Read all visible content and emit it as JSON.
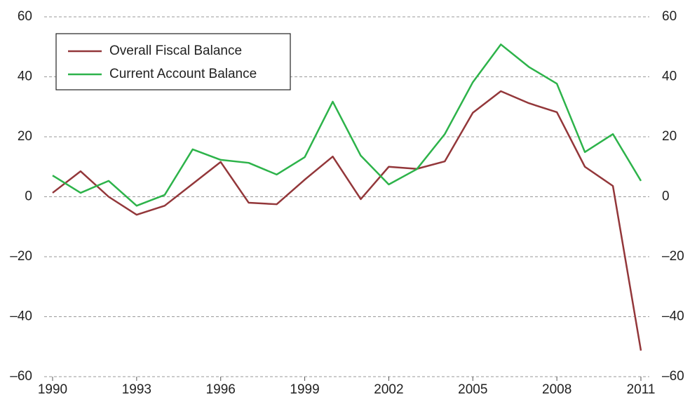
{
  "chart_data": {
    "type": "line",
    "x": [
      1990,
      1991,
      1992,
      1993,
      1994,
      1995,
      1996,
      1997,
      1998,
      1999,
      2000,
      2001,
      2002,
      2003,
      2004,
      2005,
      2006,
      2007,
      2008,
      2009,
      2010,
      2011
    ],
    "series": [
      {
        "name": "Overall Fiscal Balance",
        "color": "#93373a",
        "values": [
          1.3,
          8.5,
          0,
          -6,
          -3,
          4.3,
          11.6,
          -2,
          -2.5,
          5.7,
          13.4,
          -0.8,
          10,
          9.3,
          11.8,
          28,
          35.2,
          31.2,
          28.2,
          10,
          3.6,
          -51.3
        ]
      },
      {
        "name": "Current Account Balance",
        "color": "#2db34a",
        "values": [
          7.1,
          1.3,
          5.3,
          -3,
          0.6,
          15.8,
          12.3,
          11.3,
          7.4,
          13.2,
          31.7,
          13.7,
          4.1,
          9.2,
          20.9,
          38.2,
          50.8,
          43.3,
          37.7,
          14.9,
          20.9,
          5.3
        ]
      }
    ],
    "xlim": [
      1990,
      2011
    ],
    "xticks": [
      1990,
      1993,
      1996,
      1999,
      2002,
      2005,
      2008,
      2011
    ],
    "ylim": [
      -60,
      60
    ],
    "yticks": [
      {
        "value": -60,
        "label": "–60"
      },
      {
        "value": -40,
        "label": "–40"
      },
      {
        "value": -20,
        "label": "–20"
      },
      0,
      20,
      40,
      60
    ],
    "y2lim": [
      -60,
      60
    ],
    "y2ticks": [
      {
        "value": -60,
        "label": "–60"
      },
      {
        "value": -40,
        "label": "–40"
      },
      {
        "value": -20,
        "label": "–20"
      },
      0,
      20,
      40,
      60
    ],
    "grid": true,
    "legend": "upper left"
  }
}
